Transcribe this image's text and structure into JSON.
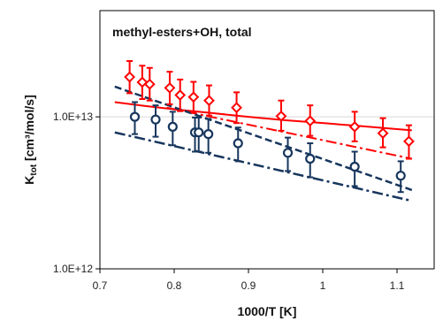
{
  "chart_data": {
    "type": "scatter",
    "title": "",
    "annotation": "methyl-esters+OH, total",
    "xlabel": "1000/T [K]",
    "ylabel": "K",
    "ylabel_sub": "tot",
    "ylabel_units": " [cm³/mol/s]",
    "xlim": [
      0.7,
      1.15
    ],
    "ylim": [
      1000000000000.0,
      50000000000000.0
    ],
    "y_scale": "log",
    "x_ticks": [
      0.7,
      0.8,
      0.9,
      1.0,
      1.1
    ],
    "x_tick_labels": [
      "0.7",
      "0.8",
      "0.9",
      "1",
      "1.1"
    ],
    "y_ticks": [
      1000000000000.0,
      10000000000000.0
    ],
    "y_tick_labels": [
      "1.0E+12",
      "1.0E+13"
    ],
    "grid": "horizontal",
    "colors": {
      "red": "#ff0000",
      "navy": "#17365d"
    },
    "series": [
      {
        "kind": "points",
        "marker": "diamond",
        "color": "#ff0000",
        "x": [
          0.74,
          0.757,
          0.767,
          0.794,
          0.808,
          0.826,
          0.847,
          0.884,
          0.944,
          0.983,
          1.043,
          1.081,
          1.116
        ],
        "y": [
          18300000000000.0,
          16900000000000.0,
          16400000000000.0,
          15500000000000.0,
          13900000000000.0,
          13500000000000.0,
          12800000000000.0,
          11500000000000.0,
          10100000000000.0,
          9400000000000.0,
          8600000000000.0,
          7800000000000.0,
          6900000000000.0
        ],
        "err_low": [
          4000000000000.0,
          3800000000000.0,
          3600000000000.0,
          3400000000000.0,
          3000000000000.0,
          2800000000000.0,
          2600000000000.0,
          2400000000000.0,
          2000000000000.0,
          1900000000000.0,
          1700000000000.0,
          1500000000000.0,
          1600000000000.0
        ],
        "err_high": [
          5000000000000.0,
          4800000000000.0,
          4600000000000.0,
          4300000000000.0,
          3700000000000.0,
          3500000000000.0,
          3300000000000.0,
          3000000000000.0,
          2700000000000.0,
          2500000000000.0,
          2200000000000.0,
          2000000000000.0,
          1900000000000.0
        ]
      },
      {
        "kind": "points",
        "marker": "circle",
        "color": "#17365d",
        "x": [
          0.747,
          0.775,
          0.798,
          0.828,
          0.833,
          0.846,
          0.886,
          0.953,
          0.983,
          1.043,
          1.105
        ],
        "y": [
          10000000000000.0,
          9600000000000.0,
          8600000000000.0,
          7900000000000.0,
          7900000000000.0,
          7700000000000.0,
          6700000000000.0,
          5800000000000.0,
          5300000000000.0,
          4700000000000.0,
          4100000000000.0
        ],
        "err_low": [
          2300000000000.0,
          2200000000000.0,
          2100000000000.0,
          2000000000000.0,
          2000000000000.0,
          1900000000000.0,
          1600000000000.0,
          1400000000000.0,
          1300000000000.0,
          1200000000000.0,
          900000000000.0
        ],
        "err_high": [
          2500000000000.0,
          2300000000000.0,
          2200000000000.0,
          2000000000000.0,
          2000000000000.0,
          2000000000000.0,
          1800000000000.0,
          1500000000000.0,
          1400000000000.0,
          1200000000000.0,
          1000000000000.0
        ]
      },
      {
        "kind": "line",
        "style": "solid",
        "color": "#ff0000",
        "width": 2,
        "x": [
          0.72,
          0.76,
          0.8,
          0.85,
          0.9,
          0.95,
          1.0,
          1.05,
          1.1,
          1.12
        ],
        "y": [
          12500000000000.0,
          11800000000000.0,
          11200000000000.0,
          10600000000000.0,
          10000000000000.0,
          9500000000000.0,
          9100000000000.0,
          8700000000000.0,
          8300000000000.0,
          8150000000000.0
        ]
      },
      {
        "kind": "line",
        "style": "dashdot",
        "color": "#ff0000",
        "width": 2,
        "x": [
          0.79,
          1.12
        ],
        "y": [
          11500000000000.0,
          5300000000000.0
        ]
      },
      {
        "kind": "line",
        "style": "dashed",
        "color": "#17365d",
        "width": 2.5,
        "x": [
          0.72,
          1.12
        ],
        "y": [
          15800000000000.0,
          3300000000000.0
        ]
      },
      {
        "kind": "line",
        "style": "dashdot",
        "color": "#17365d",
        "width": 2.5,
        "x": [
          0.72,
          1.12
        ],
        "y": [
          7900000000000.0,
          2800000000000.0
        ]
      }
    ]
  }
}
